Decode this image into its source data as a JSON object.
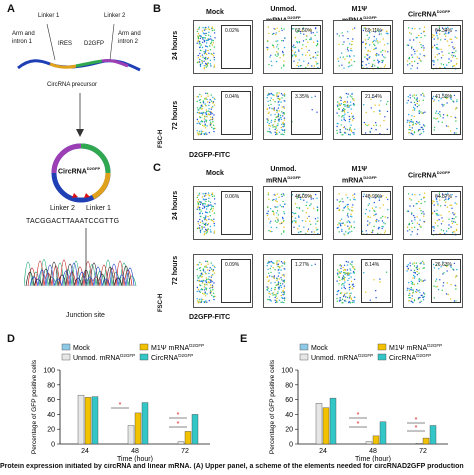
{
  "panel_a": {
    "letter": "A",
    "linker1": "Linker 1",
    "linker2": "Linker 2",
    "arm_intron1": "Arm and\nintron 1",
    "ires": "IRES",
    "d2gfp": "D2GFP",
    "arm_intron2": "Arm and\nintron 2",
    "precursor": "CircRNA precursor",
    "circ_label": "CircRNA",
    "circ_sup": "D2GFP",
    "linker2_b": "Linker 2",
    "linker1_b": "Linker 1",
    "sequence": "TACGGACTTAAATCCGTTG",
    "junction": "Junction site"
  },
  "panel_b": {
    "letter": "B",
    "cols": [
      "Mock",
      "Unmod.\nmRNA",
      "M1Ψ\nmRNA",
      "CircRNA"
    ],
    "col_sups": [
      "",
      "D2GFP",
      "D2GFP",
      "D2GFP"
    ],
    "rows": [
      "24 hours",
      "72 hours"
    ],
    "values_24": [
      "0.02%",
      "62.50%",
      "69.11%",
      "64.34%"
    ],
    "values_72": [
      "0.04%",
      "3.35%",
      "21.54%",
      "41.59%"
    ],
    "y_label": "FSC-H",
    "x_label": "D2GFP-FITC"
  },
  "panel_c": {
    "letter": "C",
    "cols": [
      "Mock",
      "Unmod.\nmRNA",
      "M1Ψ\nmRNA",
      "CircRNA"
    ],
    "col_sups": [
      "",
      "D2GFP",
      "D2GFP",
      "D2GFP"
    ],
    "rows": [
      "24 hours",
      "72 hours"
    ],
    "values_24": [
      "0.06%",
      "48.09%",
      "48.99%",
      "64.87%"
    ],
    "values_72": [
      "0.09%",
      "1.27%",
      "8.14%",
      "26.63%"
    ],
    "y_label": "FSC-H",
    "x_label": "D2GFP-FITC"
  },
  "chart_data": [
    {
      "type": "bar",
      "panel": "D",
      "categories": [
        "24",
        "48",
        "72"
      ],
      "xlabel": "Time (hour)",
      "ylabel": "Percentage of GFP positive cells",
      "ylim": [
        0,
        100
      ],
      "yticks": [
        0,
        20,
        40,
        60,
        80,
        100
      ],
      "series": [
        {
          "name": "Mock",
          "color": "#8ecae6",
          "values": [
            0,
            0,
            0
          ]
        },
        {
          "name": "Unmod. mRNA",
          "sup": "D2GFP",
          "color": "#e6e6e6",
          "values": [
            66,
            25,
            3
          ]
        },
        {
          "name": "M1Ψ mRNA",
          "sup": "D2GFP",
          "color": "#f2c200",
          "values": [
            63,
            42,
            17
          ]
        },
        {
          "name": "CircRNA",
          "sup": "D2GFP",
          "color": "#33c6c6",
          "values": [
            64,
            56,
            40
          ]
        }
      ],
      "significance": [
        "*",
        "*",
        "*"
      ]
    },
    {
      "type": "bar",
      "panel": "E",
      "categories": [
        "24",
        "48",
        "72"
      ],
      "xlabel": "Time (hour)",
      "ylabel": "Percentage of GFP positive cells",
      "ylim": [
        0,
        100
      ],
      "yticks": [
        0,
        20,
        40,
        60,
        80,
        100
      ],
      "series": [
        {
          "name": "Mock",
          "color": "#8ecae6",
          "values": [
            0,
            0,
            0
          ]
        },
        {
          "name": "Unmod. mRNA",
          "sup": "D2GFP",
          "color": "#e6e6e6",
          "values": [
            55,
            3,
            1
          ]
        },
        {
          "name": "M1Ψ mRNA",
          "sup": "D2GFP",
          "color": "#f2c200",
          "values": [
            49,
            11,
            8
          ]
        },
        {
          "name": "CircRNA",
          "sup": "D2GFP",
          "color": "#33c6c6",
          "values": [
            62,
            30,
            25
          ]
        }
      ],
      "significance": [
        "*",
        "*",
        "*",
        "*"
      ]
    }
  ],
  "caption": "Protein expression initiated by circRNA and linear mRNA. (A) Upper panel, a scheme of the elements needed for circRNAD2GFP production"
}
